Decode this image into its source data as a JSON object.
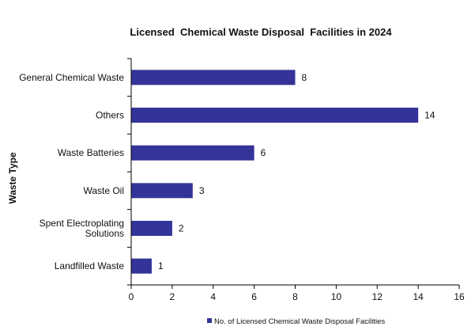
{
  "chart_data": {
    "type": "bar",
    "orientation": "horizontal",
    "title": "Licensed  Chemical Waste Disposal  Facilities in 2024",
    "xlabel": "",
    "ylabel": "Waste Type",
    "categories": [
      "General Chemical Waste",
      "Others",
      "Waste Batteries",
      "Waste Oil",
      "Spent Electroplating Solutions",
      "Landfilled Waste"
    ],
    "category_lines": [
      [
        "General Chemical Waste"
      ],
      [
        "Others"
      ],
      [
        "Waste Batteries"
      ],
      [
        "Waste Oil"
      ],
      [
        "Spent Electroplating",
        "Solutions"
      ],
      [
        "Landfilled Waste"
      ]
    ],
    "series": [
      {
        "name": "No. of Licensed Chemical Waste Disposal Facilities",
        "values": [
          8,
          14,
          6,
          3,
          2,
          1
        ],
        "color": "#333399"
      }
    ],
    "data_labels": [
      "8",
      "14",
      "6",
      "3",
      "2",
      "1"
    ],
    "xlim": [
      0,
      16
    ],
    "xticks": [
      "0",
      "2",
      "4",
      "6",
      "8",
      "10",
      "12",
      "14",
      "16"
    ],
    "grid": false,
    "legend_position": "bottom"
  }
}
